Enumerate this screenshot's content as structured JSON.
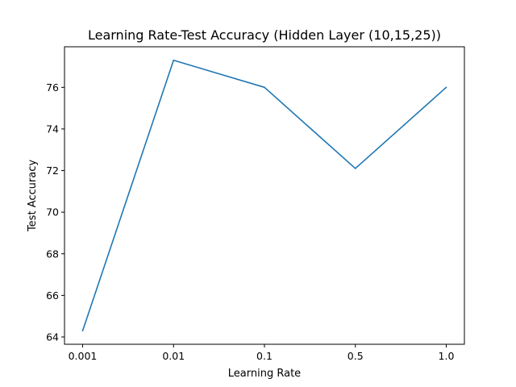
{
  "chart_data": {
    "type": "line",
    "title": "Learning Rate-Test Accuracy (Hidden Layer (10,15,25))",
    "xlabel": "Learning Rate",
    "ylabel": "Test Accuracy",
    "categories": [
      "0.001",
      "0.01",
      "0.1",
      "0.5",
      "1.0"
    ],
    "series": [
      {
        "values": [
          64.3,
          77.3,
          76.0,
          72.1,
          76.0
        ],
        "color": "#1f77b4"
      }
    ],
    "yticks": [
      "64",
      "66",
      "68",
      "70",
      "72",
      "74",
      "76"
    ],
    "ylim": [
      63.65,
      77.95
    ],
    "grid": false,
    "legend": "none"
  }
}
